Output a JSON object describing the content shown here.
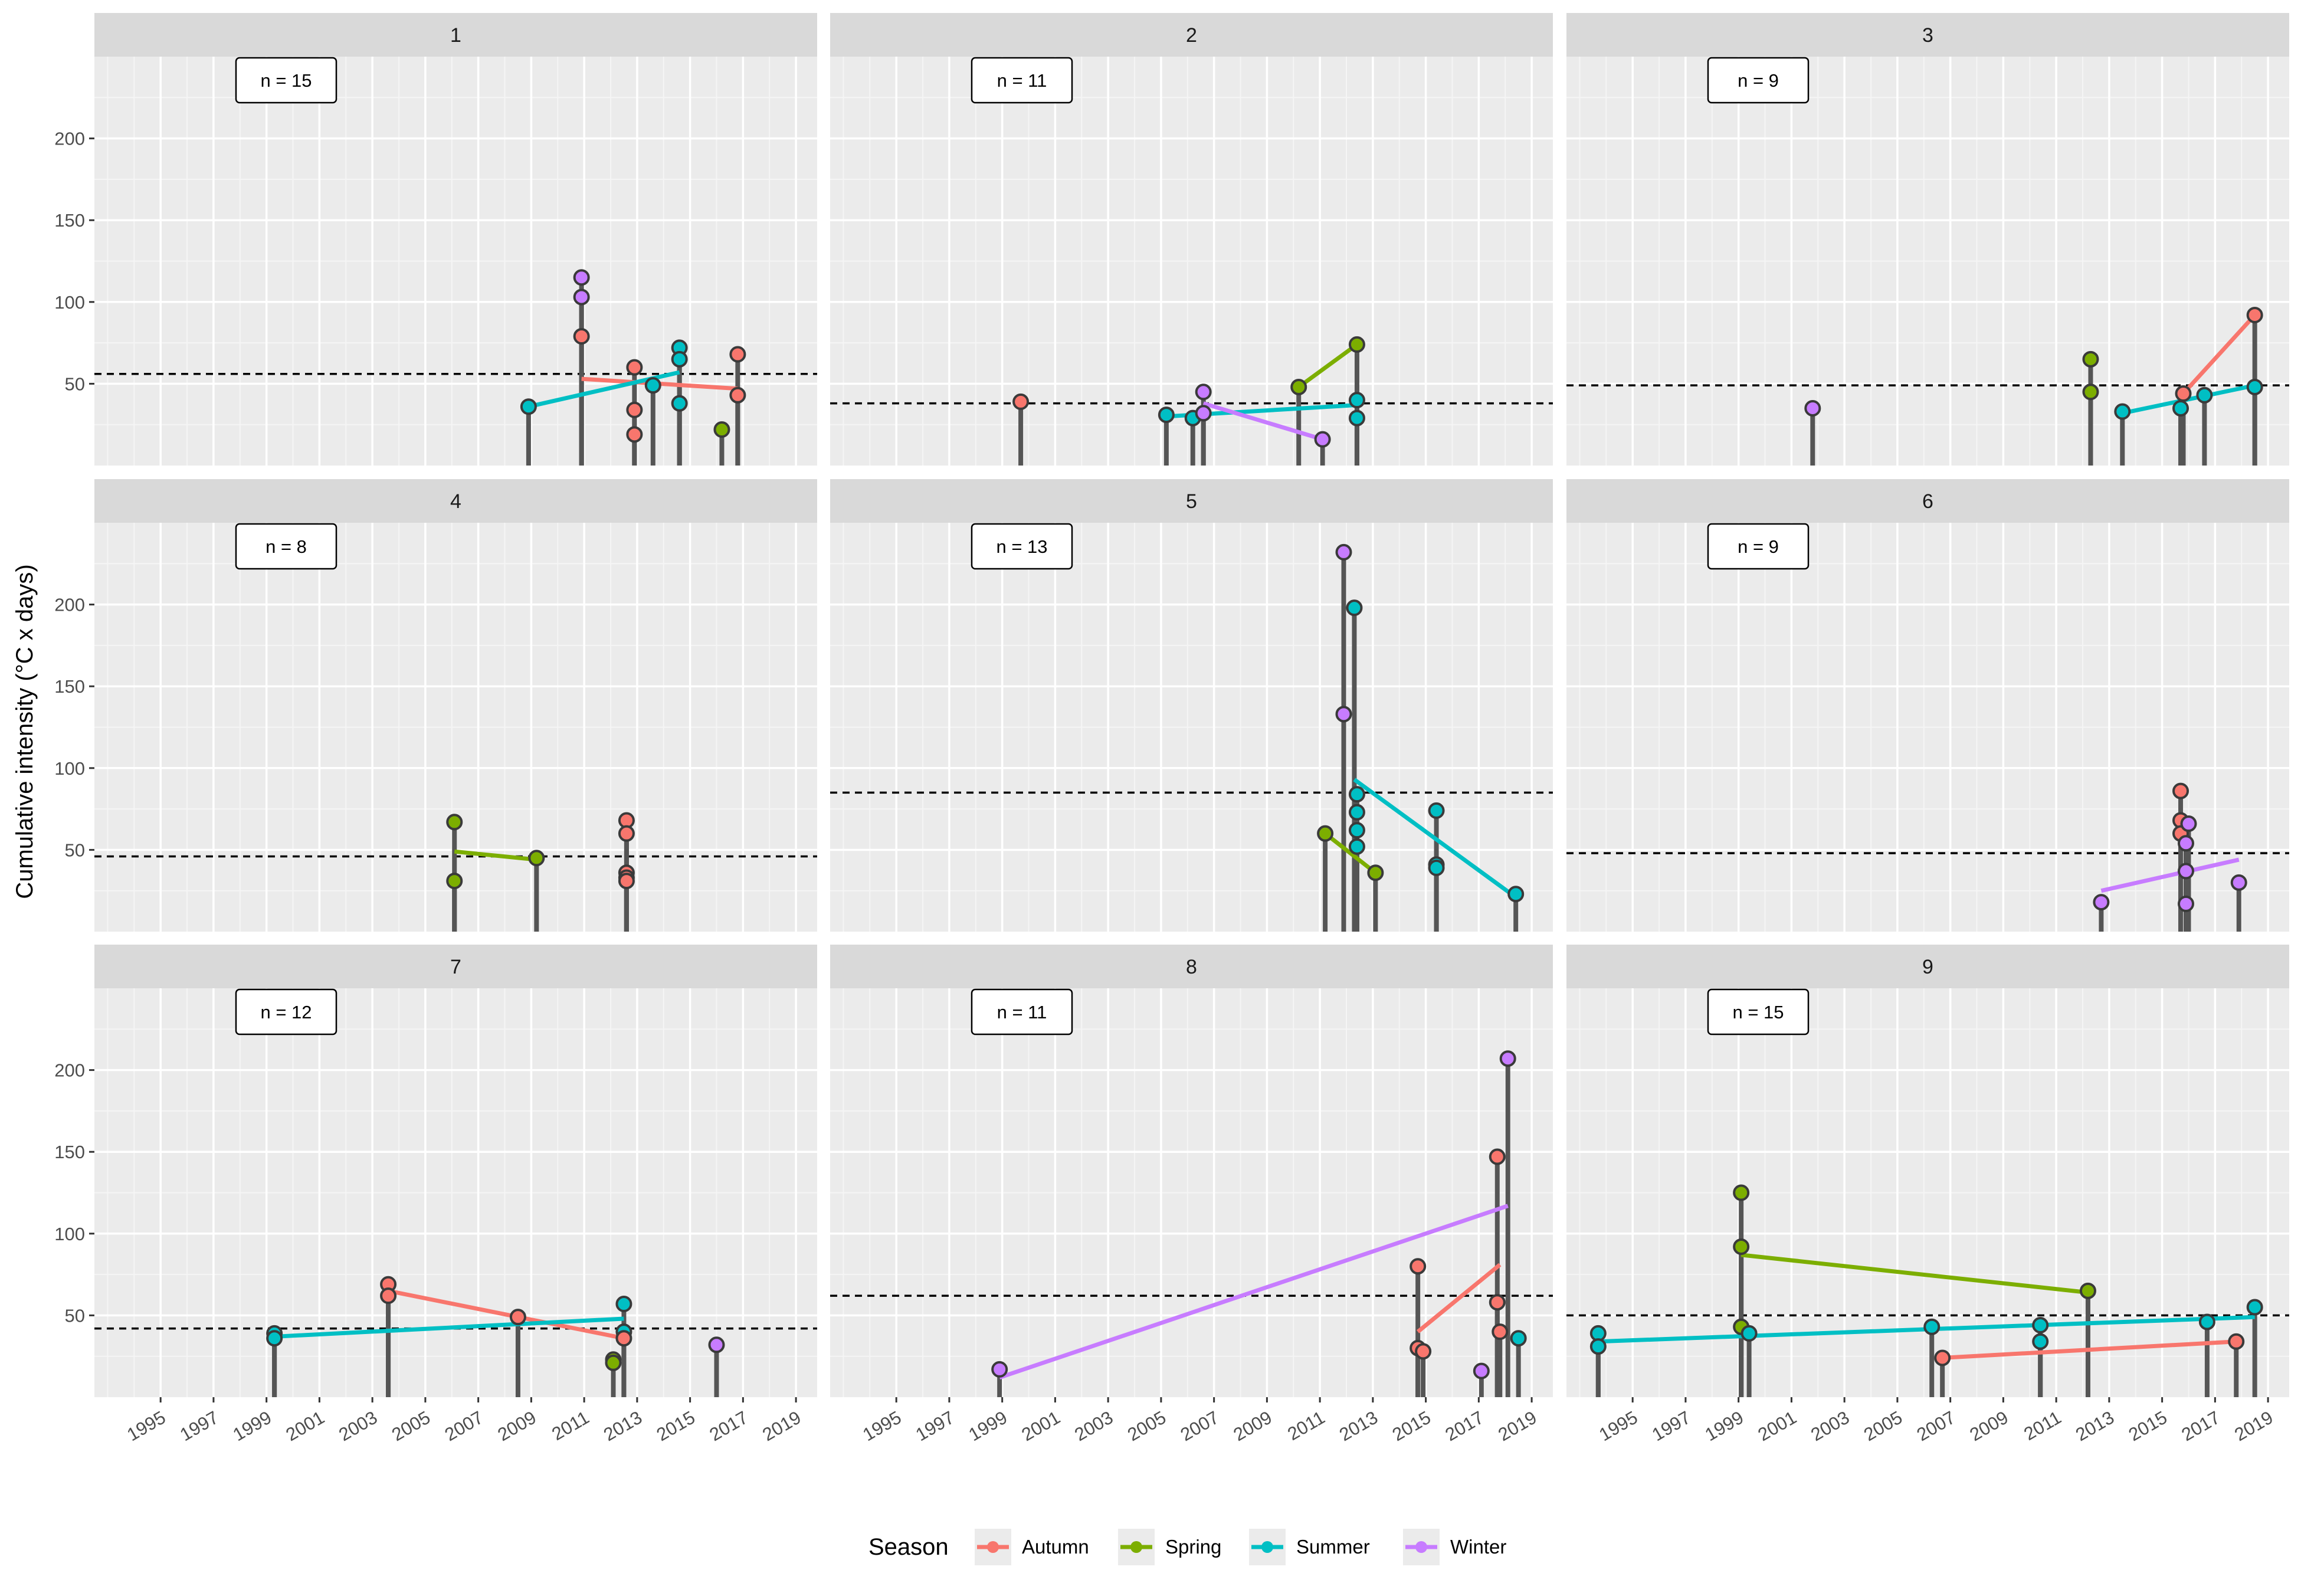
{
  "chart_data": {
    "type": "scatter",
    "ylabel": "Cumulative intensity (°C x days)",
    "xlabel": "",
    "xlim": [
      1992.5,
      2019.8
    ],
    "ylim": [
      0,
      250
    ],
    "x_ticks": [
      1995,
      1997,
      1999,
      2001,
      2003,
      2005,
      2007,
      2009,
      2011,
      2013,
      2015,
      2017,
      2019
    ],
    "x_tick_labels": [
      "1995",
      "1997",
      "1999",
      "2001",
      "2003",
      "2005",
      "2007",
      "2009",
      "2011",
      "2013",
      "2015",
      "2017",
      "2019"
    ],
    "y_ticks": [
      50,
      100,
      150,
      200
    ],
    "y_tick_labels": [
      "50",
      "100",
      "150",
      "200"
    ],
    "grid": true,
    "legend": {
      "title": "Season",
      "position": "bottom",
      "entries": [
        {
          "name": "Autumn",
          "color": "#F8766D"
        },
        {
          "name": "Spring",
          "color": "#7CAE00"
        },
        {
          "name": "Summer",
          "color": "#00BFC4"
        },
        {
          "name": "Winter",
          "color": "#C77CFF"
        }
      ]
    },
    "panels": [
      {
        "title": "1",
        "n_label": "n = 15",
        "mean": 56,
        "points": [
          {
            "x": 2008.9,
            "y": 36,
            "season": "Summer"
          },
          {
            "x": 2010.9,
            "y": 79,
            "season": "Autumn"
          },
          {
            "x": 2010.9,
            "y": 103,
            "season": "Winter"
          },
          {
            "x": 2010.9,
            "y": 115,
            "season": "Winter"
          },
          {
            "x": 2012.9,
            "y": 60,
            "season": "Autumn"
          },
          {
            "x": 2012.9,
            "y": 34,
            "season": "Autumn"
          },
          {
            "x": 2012.9,
            "y": 19,
            "season": "Autumn"
          },
          {
            "x": 2013.6,
            "y": 49,
            "season": "Summer"
          },
          {
            "x": 2014.6,
            "y": 72,
            "season": "Summer"
          },
          {
            "x": 2014.6,
            "y": 65,
            "season": "Summer"
          },
          {
            "x": 2014.6,
            "y": 38,
            "season": "Summer"
          },
          {
            "x": 2016.2,
            "y": 22,
            "season": "Spring"
          },
          {
            "x": 2016.8,
            "y": 68,
            "season": "Autumn"
          },
          {
            "x": 2016.8,
            "y": 43,
            "season": "Autumn"
          }
        ],
        "trends": [
          {
            "season": "Autumn",
            "x": [
              2010.9,
              2016.8
            ],
            "y": [
              53,
              47
            ]
          },
          {
            "season": "Summer",
            "x": [
              2008.9,
              2014.6
            ],
            "y": [
              36,
              57
            ]
          }
        ]
      },
      {
        "title": "2",
        "n_label": "n = 11",
        "mean": 38,
        "points": [
          {
            "x": 1999.7,
            "y": 39,
            "season": "Autumn"
          },
          {
            "x": 2005.2,
            "y": 31,
            "season": "Summer"
          },
          {
            "x": 2006.2,
            "y": 29,
            "season": "Summer"
          },
          {
            "x": 2006.6,
            "y": 45,
            "season": "Winter"
          },
          {
            "x": 2006.6,
            "y": 32,
            "season": "Winter"
          },
          {
            "x": 2010.2,
            "y": 48,
            "season": "Spring"
          },
          {
            "x": 2011.1,
            "y": 16,
            "season": "Winter"
          },
          {
            "x": 2012.4,
            "y": 74,
            "season": "Spring"
          },
          {
            "x": 2012.4,
            "y": 40,
            "season": "Summer"
          },
          {
            "x": 2012.4,
            "y": 29,
            "season": "Summer"
          }
        ],
        "trends": [
          {
            "season": "Summer",
            "x": [
              2005.2,
              2012.4
            ],
            "y": [
              30,
              37
            ]
          },
          {
            "season": "Spring",
            "x": [
              2010.2,
              2012.4
            ],
            "y": [
              48,
              74
            ]
          },
          {
            "season": "Winter",
            "x": [
              2006.6,
              2011.1
            ],
            "y": [
              38,
              16
            ]
          }
        ]
      },
      {
        "title": "3",
        "n_label": "n = 9",
        "mean": 49,
        "points": [
          {
            "x": 2001.8,
            "y": 35,
            "season": "Winter"
          },
          {
            "x": 2012.3,
            "y": 65,
            "season": "Spring"
          },
          {
            "x": 2012.3,
            "y": 45,
            "season": "Spring"
          },
          {
            "x": 2013.5,
            "y": 33,
            "season": "Summer"
          },
          {
            "x": 2015.8,
            "y": 44,
            "season": "Autumn"
          },
          {
            "x": 2015.7,
            "y": 35,
            "season": "Summer"
          },
          {
            "x": 2016.6,
            "y": 43,
            "season": "Summer"
          },
          {
            "x": 2018.5,
            "y": 92,
            "season": "Autumn"
          },
          {
            "x": 2018.5,
            "y": 48,
            "season": "Summer"
          }
        ],
        "trends": [
          {
            "season": "Autumn",
            "x": [
              2015.8,
              2018.5
            ],
            "y": [
              44,
              92
            ]
          },
          {
            "season": "Summer",
            "x": [
              2013.5,
              2018.5
            ],
            "y": [
              32,
              49
            ]
          }
        ]
      },
      {
        "title": "4",
        "n_label": "n = 8",
        "mean": 46,
        "points": [
          {
            "x": 2006.1,
            "y": 67,
            "season": "Spring"
          },
          {
            "x": 2006.1,
            "y": 31,
            "season": "Spring"
          },
          {
            "x": 2009.2,
            "y": 45,
            "season": "Spring"
          },
          {
            "x": 2012.6,
            "y": 68,
            "season": "Autumn"
          },
          {
            "x": 2012.6,
            "y": 60,
            "season": "Autumn"
          },
          {
            "x": 2012.6,
            "y": 36,
            "season": "Autumn"
          },
          {
            "x": 2012.6,
            "y": 33,
            "season": "Autumn"
          },
          {
            "x": 2012.6,
            "y": 31,
            "season": "Autumn"
          }
        ],
        "trends": [
          {
            "season": "Spring",
            "x": [
              2006.1,
              2009.2
            ],
            "y": [
              49,
              44
            ]
          }
        ]
      },
      {
        "title": "5",
        "n_label": "n = 13",
        "mean": 85,
        "points": [
          {
            "x": 2011.2,
            "y": 60,
            "season": "Spring"
          },
          {
            "x": 2011.9,
            "y": 232,
            "season": "Winter"
          },
          {
            "x": 2011.9,
            "y": 133,
            "season": "Winter"
          },
          {
            "x": 2012.3,
            "y": 198,
            "season": "Summer"
          },
          {
            "x": 2012.4,
            "y": 84,
            "season": "Summer"
          },
          {
            "x": 2012.4,
            "y": 73,
            "season": "Summer"
          },
          {
            "x": 2012.4,
            "y": 62,
            "season": "Summer"
          },
          {
            "x": 2012.4,
            "y": 52,
            "season": "Summer"
          },
          {
            "x": 2013.1,
            "y": 36,
            "season": "Spring"
          },
          {
            "x": 2015.4,
            "y": 74,
            "season": "Summer"
          },
          {
            "x": 2015.4,
            "y": 41,
            "season": "Summer"
          },
          {
            "x": 2015.4,
            "y": 39,
            "season": "Summer"
          },
          {
            "x": 2018.4,
            "y": 23,
            "season": "Summer"
          }
        ],
        "trends": [
          {
            "season": "Spring",
            "x": [
              2011.2,
              2013.1
            ],
            "y": [
              60,
              36
            ]
          },
          {
            "season": "Summer",
            "x": [
              2012.3,
              2018.4
            ],
            "y": [
              93,
              21
            ]
          }
        ]
      },
      {
        "title": "6",
        "n_label": "n = 9",
        "mean": 48,
        "points": [
          {
            "x": 2012.7,
            "y": 18,
            "season": "Winter"
          },
          {
            "x": 2015.7,
            "y": 86,
            "season": "Autumn"
          },
          {
            "x": 2015.7,
            "y": 68,
            "season": "Autumn"
          },
          {
            "x": 2015.7,
            "y": 60,
            "season": "Autumn"
          },
          {
            "x": 2016.0,
            "y": 66,
            "season": "Winter"
          },
          {
            "x": 2015.9,
            "y": 54,
            "season": "Winter"
          },
          {
            "x": 2015.9,
            "y": 37,
            "season": "Winter"
          },
          {
            "x": 2015.9,
            "y": 17,
            "season": "Winter"
          },
          {
            "x": 2017.9,
            "y": 30,
            "season": "Winter"
          }
        ],
        "trends": [
          {
            "season": "Winter",
            "x": [
              2012.7,
              2017.9
            ],
            "y": [
              25,
              44
            ]
          }
        ]
      },
      {
        "title": "7",
        "n_label": "n = 12",
        "mean": 42,
        "points": [
          {
            "x": 1999.3,
            "y": 39,
            "season": "Summer"
          },
          {
            "x": 1999.3,
            "y": 36,
            "season": "Summer"
          },
          {
            "x": 2003.6,
            "y": 69,
            "season": "Autumn"
          },
          {
            "x": 2003.6,
            "y": 62,
            "season": "Autumn"
          },
          {
            "x": 2008.5,
            "y": 49,
            "season": "Autumn"
          },
          {
            "x": 2012.1,
            "y": 23,
            "season": "Spring"
          },
          {
            "x": 2012.1,
            "y": 21,
            "season": "Spring"
          },
          {
            "x": 2012.5,
            "y": 57,
            "season": "Summer"
          },
          {
            "x": 2012.5,
            "y": 40,
            "season": "Summer"
          },
          {
            "x": 2012.5,
            "y": 36,
            "season": "Autumn"
          },
          {
            "x": 2016.0,
            "y": 32,
            "season": "Winter"
          }
        ],
        "trends": [
          {
            "season": "Autumn",
            "x": [
              2003.6,
              2012.5
            ],
            "y": [
              65,
              36
            ]
          },
          {
            "season": "Summer",
            "x": [
              1999.3,
              2012.5
            ],
            "y": [
              37,
              48
            ]
          }
        ]
      },
      {
        "title": "8",
        "n_label": "n = 11",
        "mean": 62,
        "points": [
          {
            "x": 1998.9,
            "y": 17,
            "season": "Winter"
          },
          {
            "x": 2014.7,
            "y": 80,
            "season": "Autumn"
          },
          {
            "x": 2014.7,
            "y": 30,
            "season": "Autumn"
          },
          {
            "x": 2014.9,
            "y": 28,
            "season": "Autumn"
          },
          {
            "x": 2017.1,
            "y": 16,
            "season": "Winter"
          },
          {
            "x": 2017.7,
            "y": 147,
            "season": "Autumn"
          },
          {
            "x": 2017.7,
            "y": 58,
            "season": "Autumn"
          },
          {
            "x": 2017.8,
            "y": 40,
            "season": "Autumn"
          },
          {
            "x": 2018.1,
            "y": 207,
            "season": "Winter"
          },
          {
            "x": 2018.5,
            "y": 36,
            "season": "Summer"
          }
        ],
        "trends": [
          {
            "season": "Autumn",
            "x": [
              2014.7,
              2017.8
            ],
            "y": [
              40,
              81
            ]
          },
          {
            "season": "Winter",
            "x": [
              1998.9,
              2018.1
            ],
            "y": [
              12,
              117
            ]
          }
        ]
      },
      {
        "title": "9",
        "n_label": "n = 15",
        "mean": 50,
        "points": [
          {
            "x": 1993.7,
            "y": 39,
            "season": "Summer"
          },
          {
            "x": 1993.7,
            "y": 31,
            "season": "Summer"
          },
          {
            "x": 1999.1,
            "y": 125,
            "season": "Spring"
          },
          {
            "x": 1999.1,
            "y": 92,
            "season": "Spring"
          },
          {
            "x": 1999.1,
            "y": 43,
            "season": "Spring"
          },
          {
            "x": 1999.4,
            "y": 39,
            "season": "Summer"
          },
          {
            "x": 2006.3,
            "y": 43,
            "season": "Summer"
          },
          {
            "x": 2006.7,
            "y": 24,
            "season": "Autumn"
          },
          {
            "x": 2010.4,
            "y": 44,
            "season": "Summer"
          },
          {
            "x": 2010.4,
            "y": 34,
            "season": "Summer"
          },
          {
            "x": 2012.2,
            "y": 65,
            "season": "Spring"
          },
          {
            "x": 2016.7,
            "y": 46,
            "season": "Summer"
          },
          {
            "x": 2017.8,
            "y": 34,
            "season": "Autumn"
          },
          {
            "x": 2018.5,
            "y": 55,
            "season": "Summer"
          }
        ],
        "trends": [
          {
            "season": "Spring",
            "x": [
              1999.1,
              2012.2
            ],
            "y": [
              87,
              64
            ]
          },
          {
            "season": "Summer",
            "x": [
              1993.7,
              2018.5
            ],
            "y": [
              34,
              49
            ]
          },
          {
            "season": "Autumn",
            "x": [
              2006.7,
              2017.8
            ],
            "y": [
              24,
              34
            ]
          }
        ]
      }
    ]
  }
}
